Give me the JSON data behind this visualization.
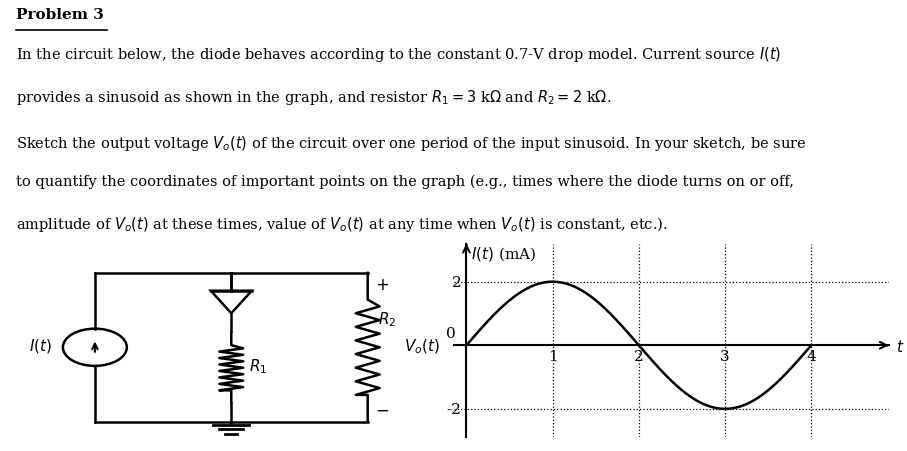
{
  "title_text": "Problem 3",
  "line1": "In the circuit below, the diode behaves according to the constant 0.7-V drop model. Current source $I(t)$",
  "line2": "provides a sinusoid as shown in the graph, and resistor $R_1 = 3$ k$\\Omega$ and $R_2 = 2$ k\\Omega.",
  "line3": "Sketch the output voltage $V_o(t)$ of the circuit over one period of the input sinusoid. In your sketch, be sure",
  "line4": "to quantify the coordinates of important points on the graph (e.g., times where the diode turns on or off,",
  "line5": "amplitude of $V_o(t)$ at these times, value of $V_o(t)$ at any time when $V_o(t)$ is constant, etc.).",
  "graph_xticks": [
    1,
    2,
    3,
    4
  ],
  "graph_yticks": [
    -2,
    2
  ],
  "graph_xlim": [
    -0.15,
    4.9
  ],
  "graph_ylim": [
    -2.9,
    3.2
  ],
  "sine_amplitude": 2,
  "sine_period": 4,
  "bg_color": "#ffffff",
  "text_color": "#000000"
}
